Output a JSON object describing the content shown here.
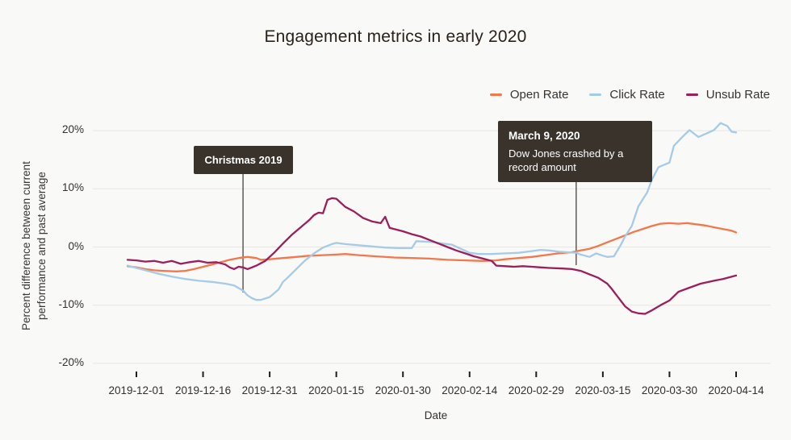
{
  "page": {
    "background": "#f9f9f8"
  },
  "chart_data": {
    "type": "line",
    "title": "Engagement metrics in early 2020",
    "xlabel": "Date",
    "ylabel": "Percent difference between current performance and past average",
    "ylabel_lines": [
      "Percent difference between current",
      "performance and past average"
    ],
    "grid": "horizontal",
    "legend_position": "top-right",
    "ylim": [
      -22,
      22
    ],
    "y_ticks": [
      {
        "label": "20%",
        "value": 20
      },
      {
        "label": "10%",
        "value": 10
      },
      {
        "label": "0%",
        "value": 0
      },
      {
        "label": "-10%",
        "value": -10
      },
      {
        "label": "-20%",
        "value": -20
      }
    ],
    "x_ticks": [
      {
        "label": "2019-12-01",
        "day": 0
      },
      {
        "label": "2019-12-16",
        "day": 15
      },
      {
        "label": "2019-12-31",
        "day": 30
      },
      {
        "label": "2020-01-15",
        "day": 45
      },
      {
        "label": "2020-01-30",
        "day": 60
      },
      {
        "label": "2020-02-14",
        "day": 75
      },
      {
        "label": "2020-02-29",
        "day": 90
      },
      {
        "label": "2020-03-15",
        "day": 105
      },
      {
        "label": "2020-03-30",
        "day": 120
      },
      {
        "label": "2020-04-14",
        "day": 135
      }
    ],
    "series": [
      {
        "name": "Open Rate",
        "color": "#f3774a",
        "points": [
          [
            -2,
            -3.3
          ],
          [
            0,
            -3.5
          ],
          [
            2,
            -3.8
          ],
          [
            4,
            -4.0
          ],
          [
            6,
            -4.1
          ],
          [
            9,
            -4.2
          ],
          [
            11,
            -4.1
          ],
          [
            13,
            -3.8
          ],
          [
            15,
            -3.4
          ],
          [
            17,
            -3.0
          ],
          [
            19,
            -2.6
          ],
          [
            21,
            -2.2
          ],
          [
            23,
            -1.9
          ],
          [
            25,
            -1.7
          ],
          [
            27,
            -1.9
          ],
          [
            28,
            -2.2
          ],
          [
            30,
            -2.1
          ],
          [
            33,
            -1.9
          ],
          [
            36,
            -1.7
          ],
          [
            39,
            -1.5
          ],
          [
            42,
            -1.4
          ],
          [
            45,
            -1.3
          ],
          [
            47,
            -1.2
          ],
          [
            50,
            -1.4
          ],
          [
            54,
            -1.6
          ],
          [
            58,
            -1.8
          ],
          [
            62,
            -1.9
          ],
          [
            66,
            -2.0
          ],
          [
            70,
            -2.2
          ],
          [
            74,
            -2.3
          ],
          [
            78,
            -2.4
          ],
          [
            81,
            -2.3
          ],
          [
            83,
            -2.1
          ],
          [
            86,
            -1.9
          ],
          [
            89,
            -1.7
          ],
          [
            92,
            -1.4
          ],
          [
            95,
            -1.1
          ],
          [
            98,
            -0.9
          ],
          [
            100,
            -0.6
          ],
          [
            102,
            -0.3
          ],
          [
            104,
            0.2
          ],
          [
            106,
            0.8
          ],
          [
            108,
            1.4
          ],
          [
            110,
            2.0
          ],
          [
            112,
            2.6
          ],
          [
            114,
            3.1
          ],
          [
            116,
            3.6
          ],
          [
            118,
            4.0
          ],
          [
            120,
            4.1
          ],
          [
            122,
            4.0
          ],
          [
            124,
            4.1
          ],
          [
            126,
            3.9
          ],
          [
            128,
            3.7
          ],
          [
            130,
            3.4
          ],
          [
            132,
            3.1
          ],
          [
            134,
            2.8
          ],
          [
            135,
            2.5
          ]
        ]
      },
      {
        "name": "Click Rate",
        "color": "#a5cbe8",
        "points": [
          [
            -2,
            -3.2
          ],
          [
            0,
            -3.6
          ],
          [
            2,
            -4.0
          ],
          [
            5,
            -4.6
          ],
          [
            8,
            -5.1
          ],
          [
            11,
            -5.5
          ],
          [
            14,
            -5.8
          ],
          [
            17,
            -6.0
          ],
          [
            20,
            -6.3
          ],
          [
            22,
            -6.6
          ],
          [
            24,
            -7.5
          ],
          [
            25,
            -8.3
          ],
          [
            26,
            -8.8
          ],
          [
            27,
            -9.1
          ],
          [
            28,
            -9.1
          ],
          [
            30,
            -8.6
          ],
          [
            32,
            -7.3
          ],
          [
            33,
            -6.0
          ],
          [
            34,
            -5.3
          ],
          [
            36,
            -3.8
          ],
          [
            38,
            -2.3
          ],
          [
            40,
            -1.1
          ],
          [
            42,
            -0.1
          ],
          [
            44,
            0.5
          ],
          [
            45,
            0.7
          ],
          [
            47,
            0.5
          ],
          [
            50,
            0.3
          ],
          [
            53,
            0.1
          ],
          [
            56,
            -0.1
          ],
          [
            59,
            -0.2
          ],
          [
            62,
            -0.2
          ],
          [
            63,
            1.0
          ],
          [
            66,
            0.9
          ],
          [
            69,
            0.6
          ],
          [
            71,
            0.4
          ],
          [
            73,
            -0.3
          ],
          [
            75,
            -1.0
          ],
          [
            77,
            -1.2
          ],
          [
            80,
            -1.2
          ],
          [
            83,
            -1.1
          ],
          [
            86,
            -1.0
          ],
          [
            89,
            -0.7
          ],
          [
            91,
            -0.5
          ],
          [
            93,
            -0.6
          ],
          [
            95,
            -0.8
          ],
          [
            97,
            -0.9
          ],
          [
            99,
            -1.0
          ],
          [
            100,
            -1.3
          ],
          [
            102,
            -1.7
          ],
          [
            103.5,
            -1.1
          ],
          [
            105,
            -1.5
          ],
          [
            106,
            -1.7
          ],
          [
            107.5,
            -1.6
          ],
          [
            109,
            0.3
          ],
          [
            110,
            1.8
          ],
          [
            111.5,
            3.6
          ],
          [
            113,
            7.0
          ],
          [
            115,
            9.4
          ],
          [
            116,
            11.5
          ],
          [
            117.5,
            13.7
          ],
          [
            119,
            14.2
          ],
          [
            120,
            14.5
          ],
          [
            121,
            17.4
          ],
          [
            123,
            19.0
          ],
          [
            124.5,
            20.1
          ],
          [
            126.5,
            18.9
          ],
          [
            128,
            19.4
          ],
          [
            130,
            20.1
          ],
          [
            131.5,
            21.3
          ],
          [
            133,
            20.8
          ],
          [
            134,
            19.8
          ],
          [
            135,
            19.7
          ]
        ]
      },
      {
        "name": "Unsub Rate",
        "color": "#9c1e5a",
        "points": [
          [
            -2,
            -2.2
          ],
          [
            0,
            -2.3
          ],
          [
            2,
            -2.5
          ],
          [
            4,
            -2.4
          ],
          [
            6,
            -2.7
          ],
          [
            8,
            -2.4
          ],
          [
            10,
            -2.9
          ],
          [
            12,
            -2.6
          ],
          [
            14,
            -2.4
          ],
          [
            16,
            -2.7
          ],
          [
            18,
            -2.6
          ],
          [
            20,
            -3.0
          ],
          [
            21,
            -3.5
          ],
          [
            22,
            -3.8
          ],
          [
            23,
            -3.4
          ],
          [
            24,
            -3.5
          ],
          [
            25,
            -3.8
          ],
          [
            26,
            -3.5
          ],
          [
            27,
            -3.2
          ],
          [
            29,
            -2.4
          ],
          [
            31,
            -1.0
          ],
          [
            33,
            0.6
          ],
          [
            35,
            2.1
          ],
          [
            37,
            3.4
          ],
          [
            39,
            4.7
          ],
          [
            40,
            5.5
          ],
          [
            41,
            5.9
          ],
          [
            42,
            5.8
          ],
          [
            43,
            8.1
          ],
          [
            44,
            8.4
          ],
          [
            45,
            8.3
          ],
          [
            47,
            6.9
          ],
          [
            49,
            6.1
          ],
          [
            51,
            5.0
          ],
          [
            53,
            4.4
          ],
          [
            55,
            4.1
          ],
          [
            56,
            5.2
          ],
          [
            57,
            3.3
          ],
          [
            60,
            2.7
          ],
          [
            62,
            2.2
          ],
          [
            64,
            1.8
          ],
          [
            66,
            1.2
          ],
          [
            68,
            0.6
          ],
          [
            70,
            0.0
          ],
          [
            72,
            -0.6
          ],
          [
            74,
            -1.1
          ],
          [
            76,
            -1.6
          ],
          [
            78,
            -2.0
          ],
          [
            80,
            -2.4
          ],
          [
            81,
            -3.2
          ],
          [
            83,
            -3.3
          ],
          [
            85,
            -3.4
          ],
          [
            87,
            -3.3
          ],
          [
            89,
            -3.4
          ],
          [
            91,
            -3.5
          ],
          [
            93,
            -3.6
          ],
          [
            96,
            -3.7
          ],
          [
            98,
            -3.8
          ],
          [
            100,
            -4.1
          ],
          [
            102,
            -4.7
          ],
          [
            104,
            -5.3
          ],
          [
            106,
            -6.3
          ],
          [
            107,
            -7.2
          ],
          [
            109,
            -9.2
          ],
          [
            110,
            -10.2
          ],
          [
            111.5,
            -11.1
          ],
          [
            113,
            -11.4
          ],
          [
            114.5,
            -11.5
          ],
          [
            116,
            -10.9
          ],
          [
            118,
            -10.0
          ],
          [
            120,
            -9.2
          ],
          [
            122,
            -7.7
          ],
          [
            124.5,
            -7.0
          ],
          [
            127,
            -6.3
          ],
          [
            130,
            -5.8
          ],
          [
            132,
            -5.5
          ],
          [
            135,
            -4.9
          ]
        ]
      }
    ],
    "annotations": [
      {
        "label": "Christmas 2019",
        "body": "",
        "day": 24
      },
      {
        "label": "March 9, 2020",
        "body": "Dow Jones crashed by a record amount",
        "day": 99
      }
    ]
  }
}
